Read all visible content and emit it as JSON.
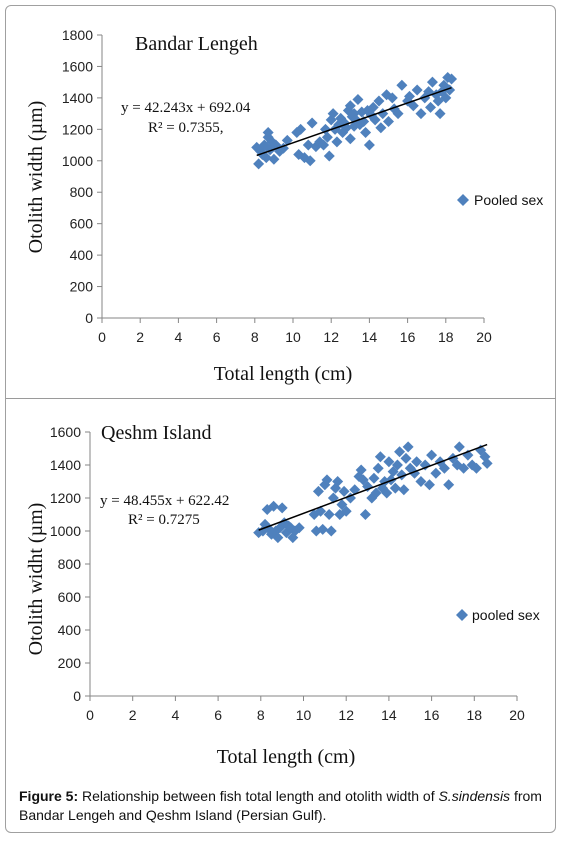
{
  "caption": {
    "label": "Figure 5:",
    "text_before": " Relationship between fish total length and otolith width of ",
    "species": "S.sindensis",
    "text_after": " from Bandar Lengeh and Qeshm Island (Persian Gulf)."
  },
  "colors": {
    "marker": "#4f81bd",
    "trendline": "#000000",
    "axis": "#868686"
  },
  "chart_data": [
    {
      "type": "scatter",
      "title": "Bandar Lengeh",
      "xlabel": "Total length (cm)",
      "ylabel": "Otolith width (µm)",
      "xlim": [
        0,
        20
      ],
      "ylim": [
        0,
        1800
      ],
      "xticks": [
        0,
        2,
        4,
        6,
        8,
        10,
        12,
        14,
        16,
        18,
        20
      ],
      "yticks": [
        0,
        200,
        400,
        600,
        800,
        1000,
        1200,
        1400,
        1600,
        1800
      ],
      "grid": false,
      "legend": {
        "label": "Pooled sex",
        "position": "right"
      },
      "equation": "y = 42.243x + 692.04",
      "r2": "R² = 0.7355,",
      "trendline": {
        "slope": 42.243,
        "intercept": 692.04,
        "x_range": [
          8.1,
          18.3
        ]
      },
      "series": [
        {
          "name": "Pooled sex",
          "marker": "diamond",
          "points": [
            [
              8.1,
              1085
            ],
            [
              8.2,
              980
            ],
            [
              8.3,
              1060
            ],
            [
              8.4,
              1040
            ],
            [
              8.5,
              1100
            ],
            [
              8.6,
              1020
            ],
            [
              8.7,
              1150
            ],
            [
              8.7,
              1180
            ],
            [
              8.8,
              1070
            ],
            [
              8.9,
              1120
            ],
            [
              9.0,
              1010
            ],
            [
              9.1,
              1100
            ],
            [
              9.3,
              1060
            ],
            [
              9.5,
              1080
            ],
            [
              9.7,
              1130
            ],
            [
              10.2,
              1180
            ],
            [
              10.3,
              1040
            ],
            [
              10.4,
              1200
            ],
            [
              10.6,
              1020
            ],
            [
              10.8,
              1100
            ],
            [
              10.9,
              1000
            ],
            [
              11.0,
              1240
            ],
            [
              11.2,
              1090
            ],
            [
              11.4,
              1120
            ],
            [
              11.6,
              1100
            ],
            [
              11.7,
              1200
            ],
            [
              11.8,
              1150
            ],
            [
              11.9,
              1030
            ],
            [
              12.0,
              1260
            ],
            [
              12.1,
              1300
            ],
            [
              12.2,
              1200
            ],
            [
              12.3,
              1120
            ],
            [
              12.4,
              1230
            ],
            [
              12.5,
              1270
            ],
            [
              12.6,
              1180
            ],
            [
              12.7,
              1240
            ],
            [
              12.8,
              1210
            ],
            [
              12.9,
              1320
            ],
            [
              13.0,
              1140
            ],
            [
              13.0,
              1350
            ],
            [
              13.1,
              1280
            ],
            [
              13.2,
              1220
            ],
            [
              13.2,
              1300
            ],
            [
              13.3,
              1260
            ],
            [
              13.4,
              1390
            ],
            [
              13.5,
              1230
            ],
            [
              13.6,
              1310
            ],
            [
              13.7,
              1250
            ],
            [
              13.8,
              1180
            ],
            [
              13.9,
              1320
            ],
            [
              14.0,
              1100
            ],
            [
              14.1,
              1290
            ],
            [
              14.2,
              1340
            ],
            [
              14.3,
              1260
            ],
            [
              14.5,
              1380
            ],
            [
              14.6,
              1210
            ],
            [
              14.7,
              1300
            ],
            [
              14.9,
              1420
            ],
            [
              15.0,
              1250
            ],
            [
              15.2,
              1400
            ],
            [
              15.3,
              1330
            ],
            [
              15.5,
              1300
            ],
            [
              15.7,
              1480
            ],
            [
              16.0,
              1380
            ],
            [
              16.1,
              1410
            ],
            [
              16.3,
              1350
            ],
            [
              16.5,
              1450
            ],
            [
              16.7,
              1300
            ],
            [
              16.9,
              1400
            ],
            [
              17.1,
              1440
            ],
            [
              17.2,
              1340
            ],
            [
              17.3,
              1500
            ],
            [
              17.5,
              1420
            ],
            [
              17.6,
              1380
            ],
            [
              17.7,
              1300
            ],
            [
              17.8,
              1440
            ],
            [
              17.9,
              1480
            ],
            [
              18.0,
              1400
            ],
            [
              18.1,
              1530
            ],
            [
              18.2,
              1450
            ],
            [
              18.3,
              1520
            ]
          ]
        }
      ]
    },
    {
      "type": "scatter",
      "title": "Qeshm Island",
      "xlabel": "Total length (cm)",
      "ylabel": "Otolith widht (µm)",
      "xlim": [
        0,
        20
      ],
      "ylim": [
        0,
        1600
      ],
      "xticks": [
        0,
        2,
        4,
        6,
        8,
        10,
        12,
        14,
        16,
        18,
        20
      ],
      "yticks": [
        0,
        200,
        400,
        600,
        800,
        1000,
        1200,
        1400,
        1600
      ],
      "grid": false,
      "legend": {
        "label": "pooled sex",
        "position": "right"
      },
      "equation": "y = 48.455x + 622.42",
      "r2": "R² = 0.7275",
      "trendline": {
        "slope": 48.455,
        "intercept": 622.42,
        "x_range": [
          7.9,
          18.6
        ]
      },
      "series": [
        {
          "name": "pooled sex",
          "marker": "diamond",
          "points": [
            [
              7.9,
              990
            ],
            [
              8.1,
              1000
            ],
            [
              8.2,
              1040
            ],
            [
              8.3,
              1130
            ],
            [
              8.4,
              1010
            ],
            [
              8.5,
              980
            ],
            [
              8.6,
              1150
            ],
            [
              8.7,
              1000
            ],
            [
              8.8,
              960
            ],
            [
              8.9,
              1020
            ],
            [
              9.0,
              1140
            ],
            [
              9.1,
              1050
            ],
            [
              9.2,
              990
            ],
            [
              9.3,
              1030
            ],
            [
              9.4,
              1020
            ],
            [
              9.5,
              960
            ],
            [
              9.6,
              1000
            ],
            [
              9.8,
              1020
            ],
            [
              10.5,
              1100
            ],
            [
              10.6,
              1000
            ],
            [
              10.7,
              1240
            ],
            [
              10.8,
              1120
            ],
            [
              10.9,
              1010
            ],
            [
              11.0,
              1280
            ],
            [
              11.1,
              1310
            ],
            [
              11.2,
              1100
            ],
            [
              11.3,
              1000
            ],
            [
              11.4,
              1200
            ],
            [
              11.5,
              1260
            ],
            [
              11.6,
              1300
            ],
            [
              11.7,
              1100
            ],
            [
              11.8,
              1160
            ],
            [
              11.9,
              1240
            ],
            [
              12.0,
              1120
            ],
            [
              12.2,
              1200
            ],
            [
              12.4,
              1250
            ],
            [
              12.6,
              1330
            ],
            [
              12.7,
              1370
            ],
            [
              12.8,
              1310
            ],
            [
              12.9,
              1100
            ],
            [
              13.0,
              1270
            ],
            [
              13.2,
              1200
            ],
            [
              13.3,
              1320
            ],
            [
              13.4,
              1230
            ],
            [
              13.5,
              1380
            ],
            [
              13.6,
              1450
            ],
            [
              13.7,
              1260
            ],
            [
              13.8,
              1300
            ],
            [
              13.9,
              1230
            ],
            [
              14.0,
              1420
            ],
            [
              14.1,
              1310
            ],
            [
              14.2,
              1360
            ],
            [
              14.3,
              1260
            ],
            [
              14.4,
              1400
            ],
            [
              14.5,
              1480
            ],
            [
              14.6,
              1340
            ],
            [
              14.7,
              1250
            ],
            [
              14.8,
              1440
            ],
            [
              14.9,
              1510
            ],
            [
              15.0,
              1380
            ],
            [
              15.2,
              1350
            ],
            [
              15.3,
              1420
            ],
            [
              15.5,
              1300
            ],
            [
              15.7,
              1400
            ],
            [
              15.9,
              1280
            ],
            [
              16.0,
              1460
            ],
            [
              16.2,
              1350
            ],
            [
              16.4,
              1420
            ],
            [
              16.6,
              1380
            ],
            [
              16.8,
              1280
            ],
            [
              17.0,
              1440
            ],
            [
              17.2,
              1400
            ],
            [
              17.3,
              1510
            ],
            [
              17.5,
              1380
            ],
            [
              17.7,
              1460
            ],
            [
              17.9,
              1400
            ],
            [
              18.1,
              1380
            ],
            [
              18.3,
              1490
            ],
            [
              18.5,
              1450
            ],
            [
              18.6,
              1410
            ]
          ]
        }
      ]
    }
  ]
}
